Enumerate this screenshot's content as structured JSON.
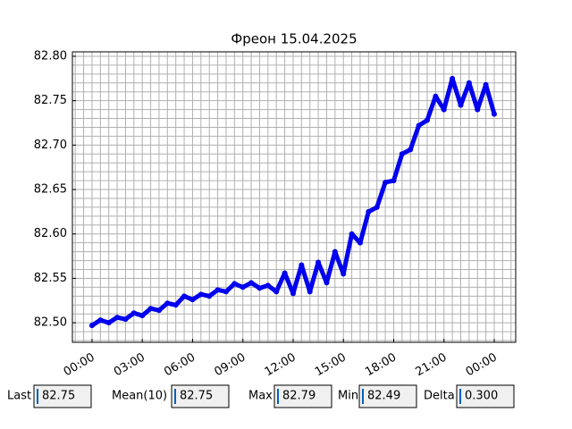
{
  "chart_data": {
    "type": "line",
    "title": "Фреон 15.04.2025",
    "x": [
      0,
      0.5,
      1,
      1.5,
      2,
      2.5,
      3,
      3.5,
      4,
      4.5,
      5,
      5.5,
      6,
      6.5,
      7,
      7.5,
      8,
      8.5,
      9,
      9.5,
      10,
      10.5,
      11,
      11.5,
      12,
      12.5,
      13,
      13.5,
      14,
      14.5,
      15,
      15.5,
      16,
      16.5,
      17,
      17.5,
      18,
      18.5,
      19,
      19.5,
      20,
      20.5,
      21,
      21.5,
      22,
      22.5,
      23,
      23.5,
      24
    ],
    "values": [
      82.497,
      82.503,
      82.5,
      82.506,
      82.504,
      82.511,
      82.508,
      82.516,
      82.514,
      82.522,
      82.52,
      82.53,
      82.526,
      82.532,
      82.53,
      82.537,
      82.535,
      82.544,
      82.54,
      82.545,
      82.539,
      82.542,
      82.535,
      82.556,
      82.533,
      82.565,
      82.535,
      82.568,
      82.545,
      82.58,
      82.555,
      82.6,
      82.59,
      82.625,
      82.63,
      82.658,
      82.66,
      82.69,
      82.695,
      82.722,
      82.728,
      82.755,
      82.74,
      82.775,
      82.745,
      82.77,
      82.74,
      82.768,
      82.735
    ],
    "color": "#0000ee",
    "xlim": [
      -1.17,
      25.28
    ],
    "xticks": [
      {
        "value": 0,
        "label": "00:00"
      },
      {
        "value": 3,
        "label": "03:00"
      },
      {
        "value": 6,
        "label": "06:00"
      },
      {
        "value": 9,
        "label": "09:00"
      },
      {
        "value": 12,
        "label": "12:00"
      },
      {
        "value": 15,
        "label": "15:00"
      },
      {
        "value": 18,
        "label": "18:00"
      },
      {
        "value": 21,
        "label": "21:00"
      },
      {
        "value": 24,
        "label": "00:00"
      }
    ],
    "xminorticks": [
      -1,
      -0.5,
      0.5,
      1,
      1.5,
      2,
      2.5,
      3.5,
      4,
      4.5,
      5,
      5.5,
      6.5,
      7,
      7.5,
      8,
      8.5,
      9.5,
      10,
      10.5,
      11,
      11.5,
      12.5,
      13,
      13.5,
      14,
      14.5,
      15.5,
      16,
      16.5,
      17,
      17.5,
      18.5,
      19,
      19.5,
      20,
      20.5,
      21.5,
      22,
      22.5,
      23,
      23.5,
      24.5,
      25
    ],
    "ylim": [
      82.478,
      82.805
    ],
    "yticks": [
      {
        "value": 82.5,
        "label": "82.50"
      },
      82.55,
      {
        "value": 82.6,
        "label": "82.60"
      },
      82.65,
      {
        "value": 82.7,
        "label": "82.70"
      },
      82.75,
      {
        "value": 82.8,
        "label": "82.80"
      }
    ],
    "yminorticks": [
      82.48,
      82.49,
      82.51,
      82.52,
      82.53,
      82.54,
      82.56,
      82.57,
      82.58,
      82.59,
      82.61,
      82.62,
      82.63,
      82.64,
      82.66,
      82.67,
      82.68,
      82.69,
      82.71,
      82.72,
      82.73,
      82.74,
      82.76,
      82.77,
      82.78,
      82.79
    ],
    "grid": true
  },
  "stats": [
    {
      "label": "Last",
      "value": "82.75"
    },
    {
      "label": "Mean(10)",
      "value": "82.75"
    },
    {
      "label": "Max",
      "value": "82.79"
    },
    {
      "label": "Min",
      "value": "82.49"
    },
    {
      "label": "Delta",
      "value": "0.300"
    }
  ]
}
